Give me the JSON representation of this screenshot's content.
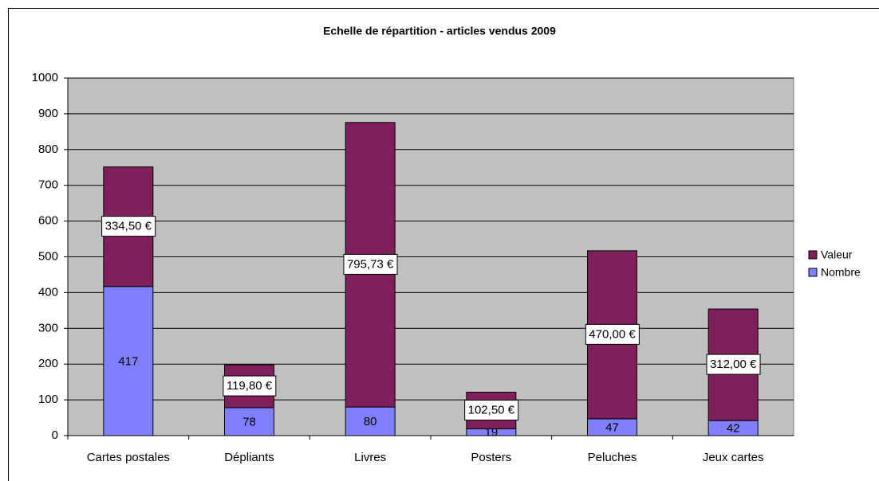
{
  "chart_data": {
    "type": "stacked_bar",
    "title": "Echelle de répartition - articles vendus 2009",
    "categories": [
      "Cartes postales",
      "Dépliants",
      "Livres",
      "Posters",
      "Peluches",
      "Jeux cartes"
    ],
    "series": [
      {
        "name": "Nombre",
        "color": "#8080ff",
        "values": [
          417,
          78,
          80,
          19,
          47,
          42
        ]
      },
      {
        "name": "Valeur",
        "color": "#7f1f5c",
        "values": [
          334.5,
          119.8,
          795.73,
          102.5,
          470,
          312
        ],
        "value_labels": [
          "334,50 €",
          "119,80 €",
          "795,73 €",
          "102,50 €",
          "470,00 €",
          "312,00 €"
        ]
      }
    ],
    "ylim": [
      0,
      1000
    ],
    "yticks": [
      0,
      100,
      200,
      300,
      400,
      500,
      600,
      700,
      800,
      900,
      1000
    ],
    "grid": true,
    "legend": "right",
    "plot_background": "#c0c0c0"
  }
}
